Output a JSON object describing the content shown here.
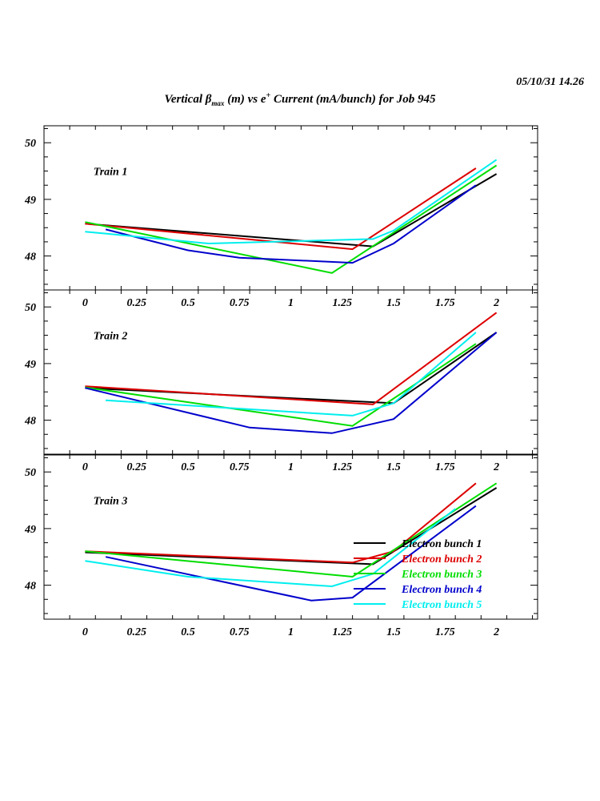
{
  "header": {
    "timestamp": "05/10/31   14.26",
    "title_part1": "Vertical β",
    "title_sub": "max",
    "title_part2": " (m) vs e",
    "title_sup": "+",
    "title_part3": " Current (mA/bunch) for Job 945"
  },
  "chart_data": {
    "type": "line",
    "xlim": [
      -0.2,
      2.2
    ],
    "ylim": [
      47.4,
      50.3
    ],
    "x_ticks": [
      "0",
      "0.25",
      "0.5",
      "0.75",
      "1",
      "1.25",
      "1.5",
      "1.75",
      "2"
    ],
    "y_ticks": [
      "48",
      "49",
      "50"
    ],
    "colors": {
      "Electron bunch 1": "#000000",
      "Electron bunch 2": "#dd0000",
      "Electron bunch 3": "#00dd00",
      "Electron bunch 4": "#0000cc",
      "Electron bunch 5": "#00eeee"
    },
    "legend": {
      "placement": "lower-right of bottom panel",
      "entries": [
        "Electron bunch 1",
        "Electron bunch 2",
        "Electron bunch 3",
        "Electron bunch 4",
        "Electron bunch 5"
      ]
    },
    "panels": [
      {
        "label": "Train 1",
        "series": [
          {
            "name": "Electron bunch 1",
            "x": [
              0,
              1.4,
              2
            ],
            "y": [
              48.57,
              48.17,
              49.45
            ]
          },
          {
            "name": "Electron bunch 2",
            "x": [
              0,
              1.3,
              1.9
            ],
            "y": [
              48.57,
              48.12,
              49.55
            ]
          },
          {
            "name": "Electron bunch 3",
            "x": [
              0,
              1.2,
              2
            ],
            "y": [
              48.6,
              47.7,
              49.6
            ]
          },
          {
            "name": "Electron bunch 4",
            "x": [
              0.1,
              0.5,
              0.75,
              1.3,
              1.5,
              1.9
            ],
            "y": [
              48.47,
              48.1,
              47.97,
              47.88,
              48.22,
              49.25
            ]
          },
          {
            "name": "Electron bunch 5",
            "x": [
              0,
              0.6,
              1.4,
              1.5,
              2
            ],
            "y": [
              48.43,
              48.22,
              48.3,
              48.45,
              49.7
            ]
          }
        ]
      },
      {
        "label": "Train 2",
        "series": [
          {
            "name": "Electron bunch 1",
            "x": [
              0,
              1.5,
              2
            ],
            "y": [
              48.57,
              48.3,
              49.55
            ]
          },
          {
            "name": "Electron bunch 2",
            "x": [
              0,
              1.4,
              2
            ],
            "y": [
              48.6,
              48.28,
              49.9
            ]
          },
          {
            "name": "Electron bunch 3",
            "x": [
              0,
              1.3,
              1.9
            ],
            "y": [
              48.58,
              47.9,
              49.35
            ]
          },
          {
            "name": "Electron bunch 4",
            "x": [
              0,
              0.8,
              1.2,
              1.5,
              2
            ],
            "y": [
              48.57,
              47.87,
              47.77,
              48.02,
              49.55
            ]
          },
          {
            "name": "Electron bunch 5",
            "x": [
              0.1,
              1.3,
              1.5,
              1.9
            ],
            "y": [
              48.35,
              48.08,
              48.3,
              49.55
            ]
          }
        ]
      },
      {
        "label": "Train 3",
        "series": [
          {
            "name": "Electron bunch 1",
            "x": [
              0,
              1.4,
              2
            ],
            "y": [
              48.58,
              48.37,
              49.72
            ]
          },
          {
            "name": "Electron bunch 2",
            "x": [
              0,
              1.3,
              1.5,
              1.9
            ],
            "y": [
              48.6,
              48.4,
              48.6,
              49.8
            ]
          },
          {
            "name": "Electron bunch 3",
            "x": [
              0,
              1.3,
              2
            ],
            "y": [
              48.6,
              48.15,
              49.8
            ]
          },
          {
            "name": "Electron bunch 4",
            "x": [
              0.1,
              1.1,
              1.3,
              1.9
            ],
            "y": [
              48.5,
              47.73,
              47.78,
              49.4
            ]
          },
          {
            "name": "Electron bunch 5",
            "x": [
              0,
              0.5,
              1.2,
              1.4,
              1.8
            ],
            "y": [
              48.43,
              48.15,
              47.98,
              48.2,
              49.35
            ]
          }
        ]
      }
    ]
  }
}
